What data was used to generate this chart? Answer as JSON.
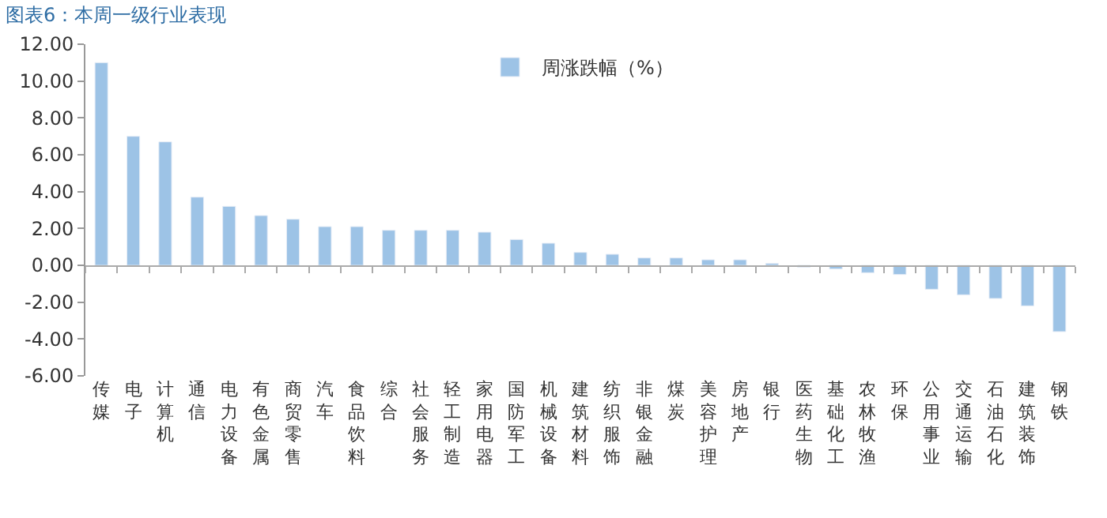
{
  "chart_data": {
    "type": "bar",
    "title": "图表6：本周一级行业表现",
    "categories": [
      "传媒",
      "电子",
      "计算机",
      "通信",
      "电力设备",
      "有色金属",
      "商贸零售",
      "汽车",
      "食品饮料",
      "综合",
      "社会服务",
      "轻工制造",
      "家用电器",
      "国防军工",
      "机械设备",
      "建筑材料",
      "纺织服饰",
      "非银金融",
      "煤炭",
      "美容护理",
      "房地产",
      "银行",
      "医药生物",
      "基础化工",
      "农林牧渔",
      "环保",
      "公用事业",
      "交通运输",
      "石油石化",
      "建筑装饰",
      "钢铁"
    ],
    "series": [
      {
        "name": "周涨跌幅（%）",
        "color": "#9dc3e6",
        "values": [
          11.0,
          7.0,
          6.7,
          3.7,
          3.2,
          2.7,
          2.5,
          2.1,
          2.1,
          1.9,
          1.9,
          1.9,
          1.8,
          1.4,
          1.2,
          0.7,
          0.6,
          0.4,
          0.4,
          0.3,
          0.3,
          0.1,
          -0.1,
          -0.2,
          -0.4,
          -0.5,
          -1.3,
          -1.6,
          -1.8,
          -2.2,
          -3.6
        ]
      }
    ],
    "ylim": [
      -6,
      12
    ],
    "yticks": [
      {
        "value": -6,
        "label": "-6.00"
      },
      {
        "value": -4,
        "label": "-4.00"
      },
      {
        "value": -2,
        "label": "-2.00"
      },
      {
        "value": 0,
        "label": "0.00"
      },
      {
        "value": 2,
        "label": "2.00"
      },
      {
        "value": 4,
        "label": "4.00"
      },
      {
        "value": 6,
        "label": "6.00"
      },
      {
        "value": 8,
        "label": "8.00"
      },
      {
        "value": 10,
        "label": "10.00"
      },
      {
        "value": 12,
        "label": "12.00"
      }
    ],
    "legend": "top"
  }
}
